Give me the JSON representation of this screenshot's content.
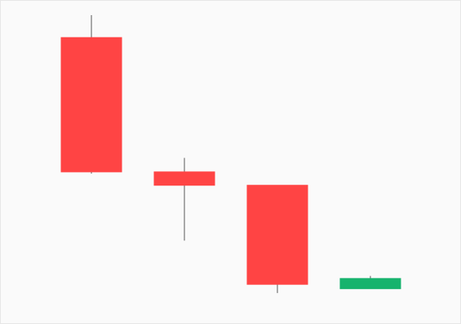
{
  "chart_data": {
    "type": "candlestick",
    "title": "",
    "xlabel": "",
    "ylabel": "",
    "ylim": [
      0,
      100
    ],
    "grid": false,
    "legend": "none",
    "colors": {
      "up": "#16b36d",
      "down": "#ff4444",
      "wick": "#555555",
      "background": "#fafafa"
    },
    "candles": [
      {
        "open": 92.3,
        "high": 100.0,
        "low": 45.6,
        "close": 46.2
      },
      {
        "open": 46.2,
        "high": 51.0,
        "low": 22.6,
        "close": 41.6
      },
      {
        "open": 41.6,
        "high": 41.6,
        "low": 4.6,
        "close": 7.6
      },
      {
        "open": 6.1,
        "high": 10.5,
        "low": 6.1,
        "close": 9.6
      }
    ]
  }
}
